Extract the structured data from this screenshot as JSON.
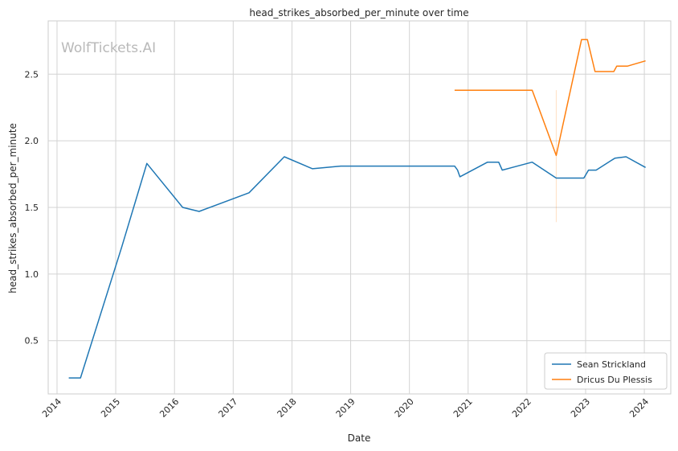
{
  "chart_data": {
    "type": "line",
    "title": "head_strikes_absorbed_per_minute over time",
    "xlabel": "Date",
    "ylabel": "head_strikes_absorbed_per_minute",
    "watermark": "WolfTickets.AI",
    "xlim": [
      2013.85,
      2024.45
    ],
    "ylim": [
      0.1,
      2.9
    ],
    "xticks": [
      2014,
      2015,
      2016,
      2017,
      2018,
      2019,
      2020,
      2021,
      2022,
      2023,
      2024
    ],
    "xtick_labels": [
      "2014",
      "2015",
      "2016",
      "2017",
      "2018",
      "2019",
      "2020",
      "2021",
      "2022",
      "2023",
      "2024"
    ],
    "yticks": [
      0.5,
      1.0,
      1.5,
      2.0,
      2.5
    ],
    "ytick_labels": [
      "0.5",
      "1.0",
      "1.5",
      "2.0",
      "2.5"
    ],
    "grid": true,
    "legend": "lower-right",
    "series": [
      {
        "name": "Sean Strickland",
        "color": "#1f77b4",
        "x": [
          2014.2,
          2014.4,
          2015.1,
          2015.53,
          2016.14,
          2016.42,
          2017.27,
          2017.87,
          2018.35,
          2018.83,
          2020.77,
          2020.82,
          2020.86,
          2021.33,
          2021.52,
          2021.58,
          2022.09,
          2022.5,
          2022.97,
          2023.05,
          2023.18,
          2023.5,
          2023.69,
          2024.02
        ],
        "y": [
          0.22,
          0.22,
          1.2,
          1.83,
          1.5,
          1.47,
          1.61,
          1.88,
          1.79,
          1.81,
          1.81,
          1.78,
          1.73,
          1.84,
          1.84,
          1.78,
          1.84,
          1.72,
          1.72,
          1.78,
          1.78,
          1.87,
          1.88,
          1.8
        ]
      },
      {
        "name": "Dricus Du Plessis",
        "color": "#ff7f0e",
        "x": [
          2020.77,
          2022.09,
          2022.5,
          2022.93,
          2023.03,
          2023.16,
          2023.48,
          2023.53,
          2023.71,
          2024.02
        ],
        "y": [
          2.38,
          2.38,
          1.89,
          2.76,
          2.76,
          2.52,
          2.52,
          2.56,
          2.56,
          2.6
        ]
      }
    ]
  }
}
